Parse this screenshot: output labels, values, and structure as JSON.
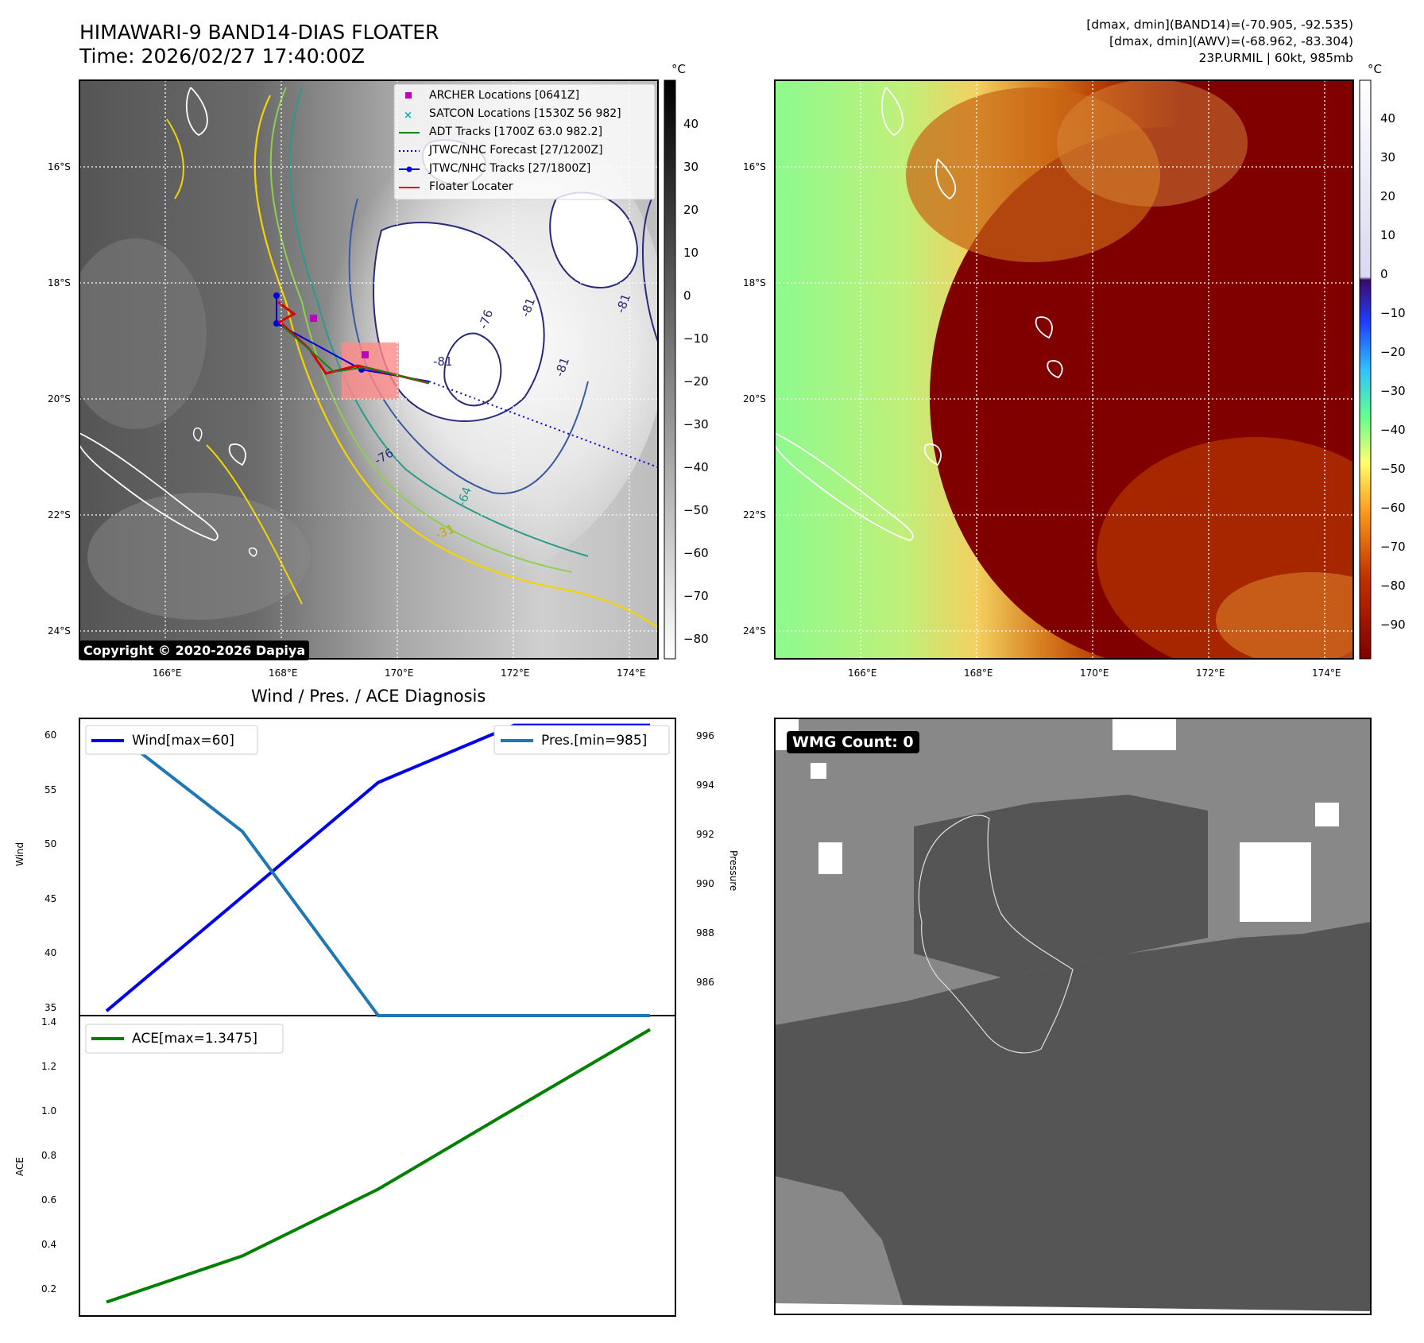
{
  "top_left": {
    "title_line1": "HIMAWARI-9 BAND14-DIAS FLOATER",
    "title_line2": "Time: 2026/02/27 17:40:00Z",
    "copyright": "Copyright © 2020-2026 Dapiya",
    "legend": [
      {
        "label": "ARCHER Locations [0641Z]",
        "color": "#c000c0",
        "marker": "square"
      },
      {
        "label": "SATCON Locations [1530Z 56 982]",
        "color": "#10b0b0",
        "marker": "x"
      },
      {
        "label": "ADT Tracks [1700Z 63.0 982.2]",
        "color": "#1a7f1a",
        "marker": "line"
      },
      {
        "label": "JTWC/NHC Forecast [27/1200Z]",
        "color": "#0000dd",
        "marker": "dotted"
      },
      {
        "label": "JTWC/NHC Tracks [27/1800Z]",
        "color": "#0000dd",
        "marker": "line-dot"
      },
      {
        "label": "Floater Locater",
        "color": "#dd0000",
        "marker": "line"
      }
    ],
    "contour_labels": [
      "-81",
      "-76",
      "-81",
      "-81",
      "-81",
      "-76",
      "-64",
      "-31"
    ],
    "colorbar": {
      "unit": "°C",
      "ticks": [
        "40",
        "30",
        "20",
        "10",
        "0",
        "−10",
        "−20",
        "−30",
        "−40",
        "−50",
        "−60",
        "−70",
        "−80"
      ]
    }
  },
  "top_right": {
    "info_line1": "[dmax, dmin](BAND14)=(-70.905, -92.535)",
    "info_line2": "[dmax, dmin](AWV)=(-68.962, -83.304)",
    "info_line3": "23P.URMIL | 60kt, 985mb",
    "colorbar": {
      "unit": "°C",
      "ticks": [
        "40",
        "30",
        "20",
        "10",
        "0",
        "−10",
        "−20",
        "−30",
        "−40",
        "−50",
        "−60",
        "−70",
        "−80",
        "−90"
      ]
    }
  },
  "map_axes": {
    "x_ticks": [
      "166°E",
      "168°E",
      "170°E",
      "172°E",
      "174°E"
    ],
    "y_ticks": [
      "16°S",
      "18°S",
      "20°S",
      "22°S",
      "24°S"
    ]
  },
  "bottom_left": {
    "title": "Wind / Pres. / ACE Diagnosis",
    "wind_ylabel": "Wind",
    "pressure_ylabel": "Pressure",
    "ace_ylabel": "ACE",
    "wind_legend": "Wind[max=60]",
    "pres_legend": "Pres.[min=985]",
    "ace_legend": "ACE[max=1.3475]",
    "wind_ticks": [
      "60",
      "55",
      "50",
      "45",
      "40",
      "35"
    ],
    "pres_ticks": [
      "996",
      "994",
      "992",
      "990",
      "988",
      "986"
    ],
    "ace_ticks": [
      "1.4",
      "1.2",
      "1.0",
      "0.8",
      "0.6",
      "0.4",
      "0.2"
    ]
  },
  "bottom_right": {
    "wmg_label": "WMG Count: 0"
  },
  "chart_data": [
    {
      "type": "line",
      "title": "Wind / Pres. / ACE Diagnosis",
      "x": [
        0,
        1,
        2,
        3,
        4
      ],
      "series": [
        {
          "name": "Wind[max=60]",
          "values": [
            35,
            45,
            55,
            60,
            60
          ],
          "color": "#0000ee",
          "axis": "left"
        },
        {
          "name": "Pres.[min=985]",
          "values": [
            996,
            992,
            985,
            985,
            985
          ],
          "color": "#1f77b4",
          "axis": "right"
        }
      ],
      "ylabel": "Wind",
      "ylabel_right": "Pressure",
      "ylim": [
        34.6,
        60.6
      ],
      "ylim_right": [
        985,
        996.3
      ]
    },
    {
      "type": "line",
      "x": [
        0,
        1,
        2,
        3,
        4
      ],
      "series": [
        {
          "name": "ACE[max=1.3475]",
          "values": [
            0.1225,
            0.33,
            0.63,
            0.99,
            1.3475
          ],
          "color": "#008000"
        }
      ],
      "ylabel": "ACE",
      "ylim": [
        0.06,
        1.41
      ]
    }
  ]
}
